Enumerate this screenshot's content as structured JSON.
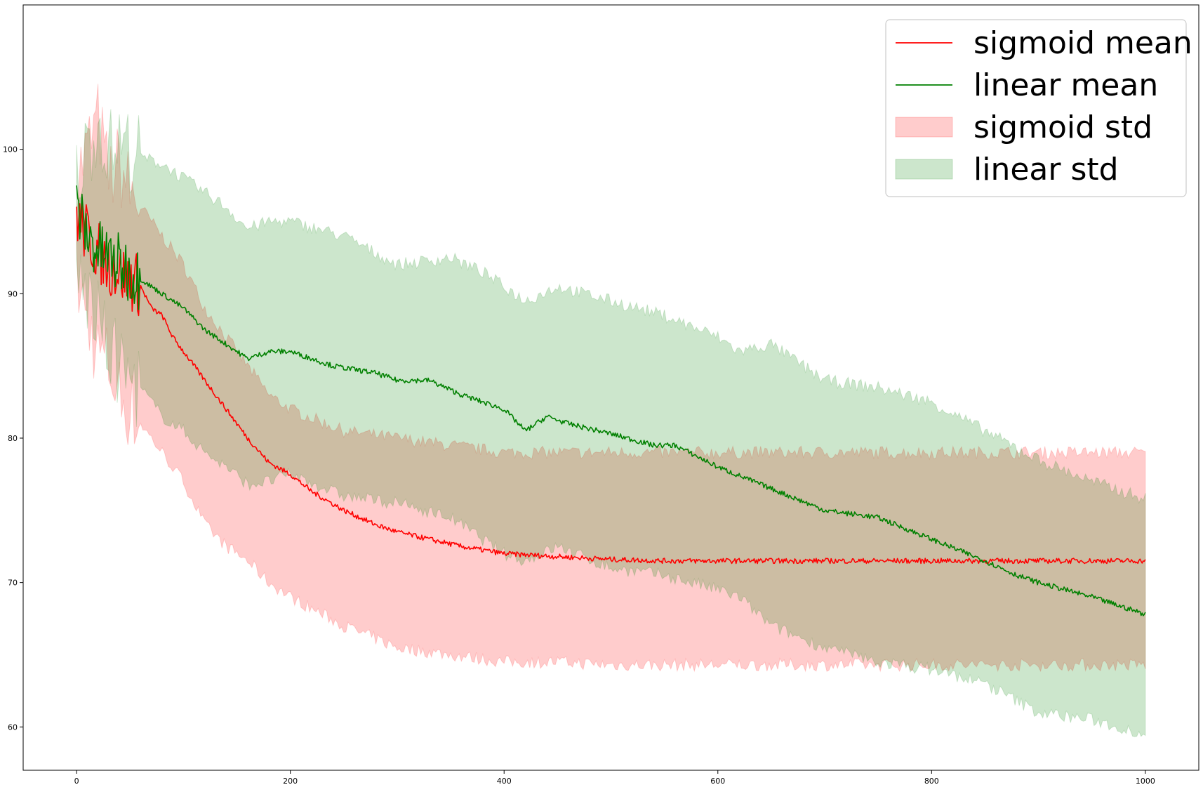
{
  "chart_data": {
    "type": "line",
    "title": "",
    "xlabel": "",
    "ylabel": "",
    "xlim": [
      -50,
      1050
    ],
    "ylim": [
      57,
      110
    ],
    "xticks": [
      0,
      200,
      400,
      600,
      800,
      1000
    ],
    "yticks": [
      60,
      70,
      80,
      90,
      100
    ],
    "x_tick_labels": [
      "0",
      "200",
      "400",
      "600",
      "800",
      "1000"
    ],
    "y_tick_labels": [
      "60",
      "70",
      "80",
      "90",
      "100"
    ],
    "grid": false,
    "legend_position": "top-right",
    "legend": [
      {
        "label": "sigmoid mean",
        "kind": "line",
        "color": "#ff0000"
      },
      {
        "label": "linear mean",
        "kind": "line",
        "color": "#008000"
      },
      {
        "label": "sigmoid std",
        "kind": "band",
        "color": "#ff0000"
      },
      {
        "label": "linear std",
        "kind": "band",
        "color": "#008000"
      }
    ],
    "series": [
      {
        "name": "sigmoid mean",
        "color": "#ff0000",
        "x": [
          0,
          10,
          20,
          30,
          40,
          50,
          60,
          70,
          80,
          90,
          100,
          120,
          140,
          160,
          180,
          200,
          220,
          250,
          280,
          300,
          330,
          360,
          400,
          450,
          500,
          550,
          600,
          650,
          700,
          750,
          800,
          850,
          900,
          950,
          1000
        ],
        "y": [
          95.5,
          94.0,
          93.0,
          92.0,
          91.5,
          91.0,
          90.5,
          89.0,
          88.5,
          87.0,
          86.0,
          84.0,
          82.0,
          80.0,
          78.3,
          77.5,
          76.3,
          75.0,
          74.0,
          73.5,
          73.0,
          72.5,
          72.0,
          71.8,
          71.6,
          71.5,
          71.5,
          71.5,
          71.5,
          71.5,
          71.5,
          71.5,
          71.5,
          71.5,
          71.5
        ]
      },
      {
        "name": "linear mean",
        "color": "#008000",
        "x": [
          0,
          10,
          20,
          30,
          40,
          50,
          60,
          70,
          80,
          90,
          100,
          120,
          140,
          160,
          180,
          200,
          240,
          280,
          300,
          330,
          360,
          400,
          420,
          440,
          460,
          500,
          540,
          560,
          600,
          650,
          700,
          750,
          800,
          850,
          880,
          900,
          950,
          1000
        ],
        "y": [
          96.0,
          94.0,
          93.0,
          92.5,
          92.0,
          91.5,
          91.0,
          90.5,
          90.0,
          89.5,
          89.0,
          87.5,
          86.5,
          85.5,
          86.0,
          86.0,
          85.0,
          84.5,
          84.0,
          84.0,
          83.0,
          82.0,
          80.5,
          81.5,
          81.0,
          80.3,
          79.5,
          79.5,
          78.0,
          76.5,
          75.0,
          74.5,
          73.0,
          71.5,
          70.5,
          70.0,
          69.0,
          67.8
        ]
      },
      {
        "name": "sigmoid std",
        "kind": "band",
        "color": "#ff0000",
        "x": [
          0,
          10,
          20,
          30,
          40,
          50,
          60,
          80,
          100,
          120,
          140,
          160,
          180,
          200,
          250,
          300,
          350,
          400,
          450,
          500,
          550,
          600,
          650,
          700,
          800,
          900,
          1000
        ],
        "upper": [
          98.0,
          100.0,
          102.0,
          98.0,
          99.0,
          97.0,
          96.0,
          94.0,
          92.0,
          89.0,
          87.0,
          85.0,
          83.0,
          82.0,
          80.5,
          80.0,
          79.5,
          79.0,
          79.0,
          79.0,
          79.0,
          79.0,
          79.0,
          79.0,
          79.0,
          79.0,
          79.0
        ],
        "lower": [
          91.0,
          88.0,
          86.0,
          85.0,
          83.0,
          82.0,
          81.0,
          79.0,
          77.0,
          74.0,
          72.5,
          71.5,
          70.0,
          69.0,
          67.0,
          65.5,
          65.0,
          64.5,
          64.5,
          64.3,
          64.3,
          64.3,
          64.3,
          64.3,
          64.3,
          64.3,
          64.3
        ]
      },
      {
        "name": "linear std",
        "kind": "band",
        "color": "#008000",
        "x": [
          0,
          10,
          20,
          30,
          40,
          50,
          60,
          80,
          100,
          120,
          140,
          160,
          180,
          200,
          250,
          300,
          350,
          380,
          400,
          420,
          450,
          500,
          550,
          600,
          620,
          650,
          700,
          750,
          800,
          850,
          900,
          950,
          1000
        ],
        "upper": [
          98.0,
          100.0,
          102.0,
          100.0,
          100.5,
          100.0,
          99.5,
          99.0,
          98.0,
          97.0,
          96.0,
          94.5,
          95.0,
          95.0,
          94.0,
          92.0,
          92.5,
          91.5,
          90.5,
          89.5,
          90.5,
          89.5,
          88.5,
          87.0,
          86.0,
          86.5,
          84.0,
          83.5,
          82.5,
          80.5,
          78.5,
          77.0,
          75.8
        ],
        "lower": [
          91.0,
          90.0,
          88.0,
          86.0,
          85.0,
          84.0,
          83.5,
          81.5,
          80.5,
          79.0,
          78.0,
          76.8,
          77.0,
          77.5,
          76.0,
          75.5,
          74.5,
          73.0,
          72.0,
          71.5,
          72.5,
          71.0,
          70.5,
          69.5,
          69.0,
          67.0,
          65.5,
          64.5,
          64.0,
          63.0,
          61.0,
          60.5,
          59.5
        ]
      }
    ]
  }
}
